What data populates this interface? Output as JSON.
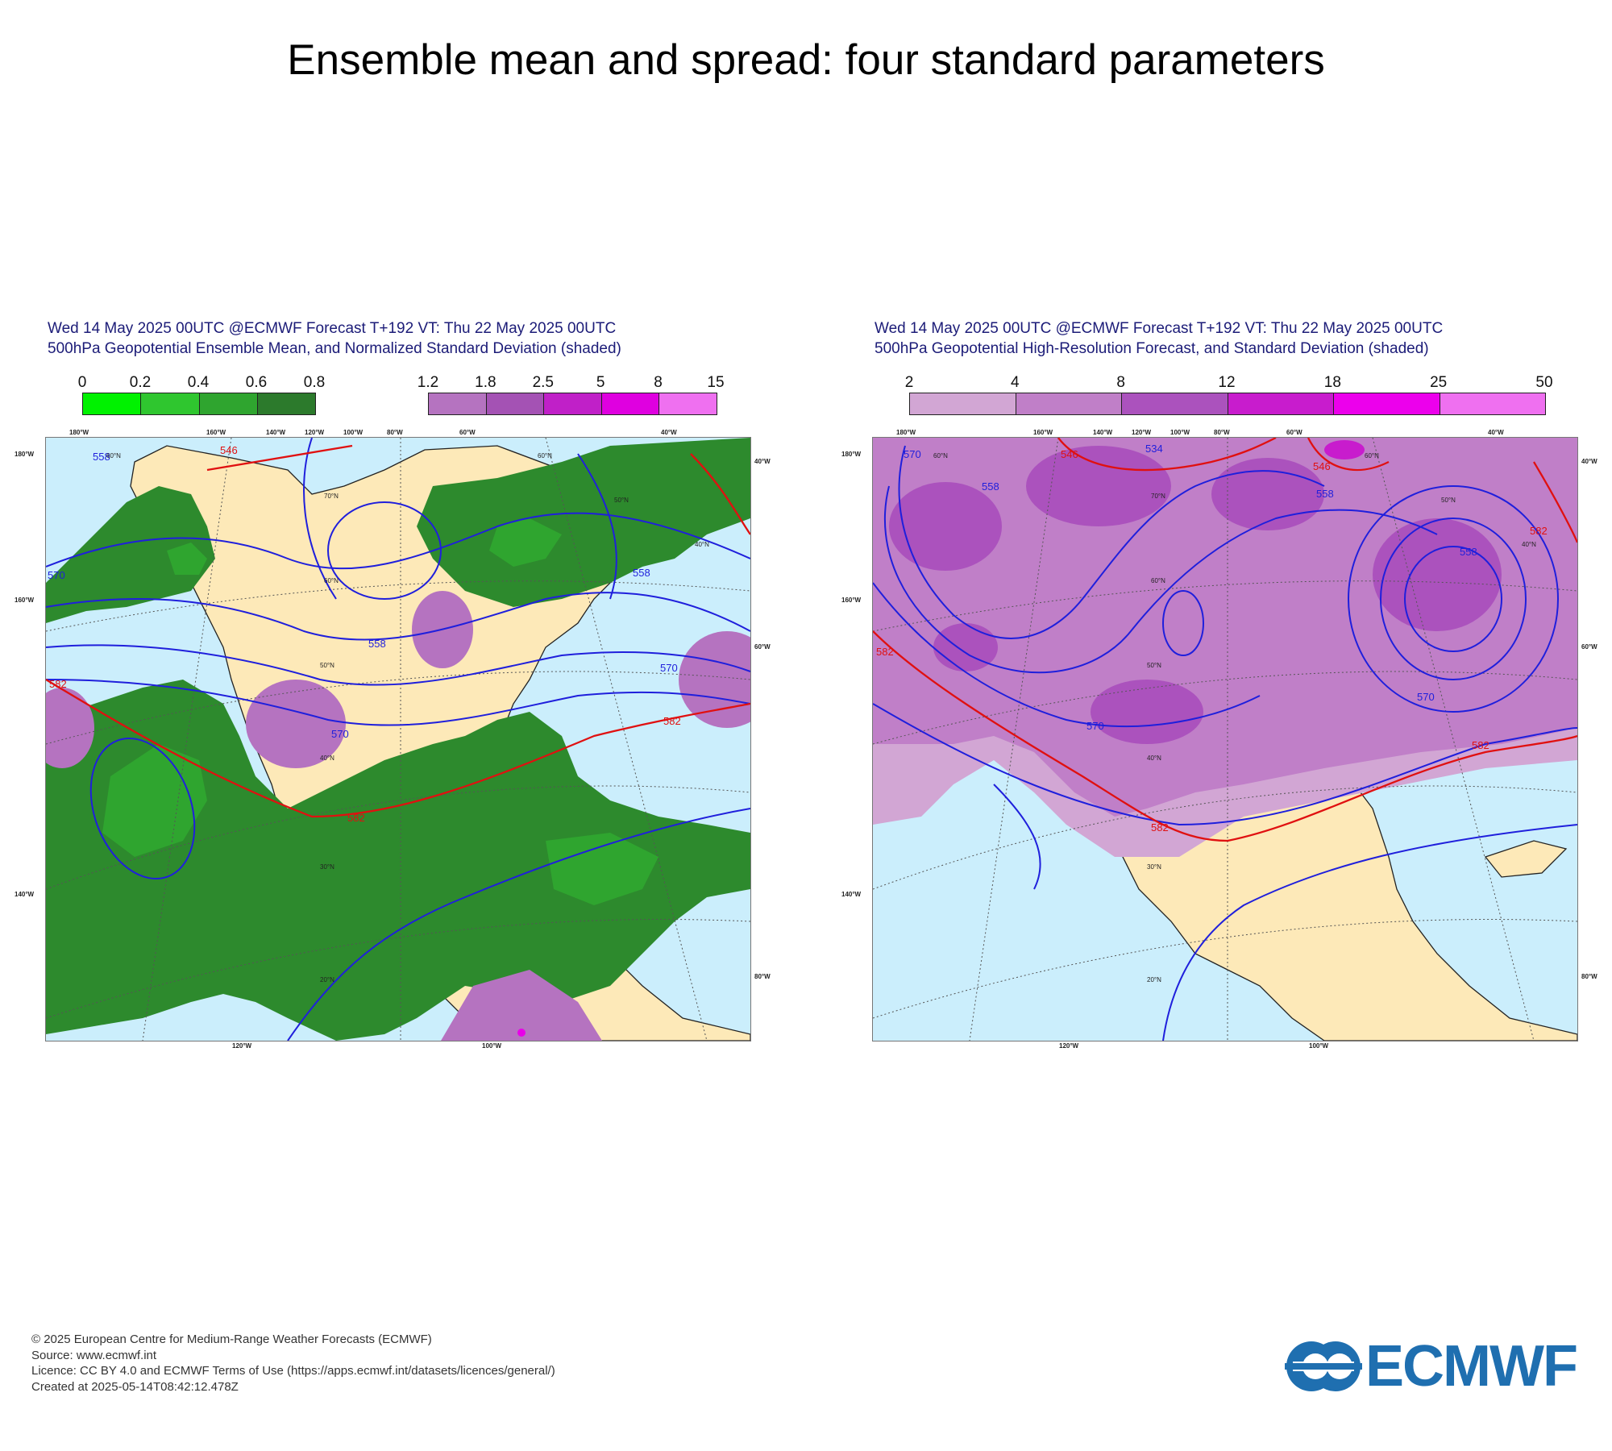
{
  "page": {
    "title": "Ensemble mean and spread: four standard parameters"
  },
  "colors": {
    "ocean": "#cbeefc",
    "land": "#fde9b8",
    "green": [
      "#00f200",
      "#2fc62f",
      "#2fa52f",
      "#2d8a2d",
      "#2c7a2c"
    ],
    "purple": [
      "#cda3d3",
      "#c081cc",
      "#b35cc5",
      "#cf12d6",
      "#e800e8",
      "#ef6ef2"
    ],
    "contour_blue": "#1f1fdc",
    "contour_red": "#e01010"
  },
  "panels": [
    {
      "id": "left",
      "header_line1": "Wed 14 May 2025 00UTC @ECMWF Forecast T+192 VT: Thu 22 May 2025 00UTC",
      "header_line2": "500hPa Geopotential Ensemble Mean, and Normalized Standard Deviation (shaded)",
      "colorbar_green": {
        "ticks": [
          "0",
          "0.2",
          "0.4",
          "0.6",
          "0.8"
        ],
        "colors": [
          "#00f200",
          "#2fc62f",
          "#2fa52f",
          "#2c7a2c"
        ]
      },
      "colorbar_purple": {
        "ticks": [
          "1.2",
          "1.8",
          "2.5",
          "5",
          "8",
          "15"
        ],
        "colors": [
          "#b573c0",
          "#a452b4",
          "#c020c8",
          "#df00e0",
          "#ef70f0"
        ]
      },
      "contour_labels": [
        "558",
        "558",
        "558",
        "570",
        "570",
        "570",
        "582",
        "582",
        "582",
        "546"
      ],
      "lon_top": [
        "160°W",
        "180°W",
        "160°W",
        "140°W",
        "120°W",
        "100°W",
        "80°W",
        "60°W",
        "40°W"
      ],
      "lon_bottom": [
        "120°W",
        "100°W"
      ],
      "lon_left": [
        "180°W",
        "160°W",
        "140°W"
      ],
      "lon_right": [
        "40°W",
        "60°W",
        "80°W"
      ],
      "lat_labels": [
        "60°N",
        "70°N",
        "60°N",
        "50°N",
        "40°N",
        "30°N",
        "20°N",
        "50°N",
        "40°N",
        "60°N"
      ]
    },
    {
      "id": "right",
      "header_line1": "Wed 14 May 2025 00UTC @ECMWF Forecast T+192 VT: Thu 22 May 2025 00UTC",
      "header_line2": "500hPa Geopotential High-Resolution Forecast, and Standard Deviation (shaded)",
      "colorbar": {
        "ticks": [
          "2",
          "4",
          "8",
          "12",
          "18",
          "25",
          "50"
        ],
        "colors": [
          "#d2a6d4",
          "#c07fc8",
          "#ab52bd",
          "#c81ccd",
          "#ec00ec",
          "#ef70f0"
        ]
      },
      "contour_labels": [
        "570",
        "558",
        "546",
        "534",
        "546",
        "558",
        "558",
        "582",
        "582",
        "570",
        "582",
        "570",
        "582"
      ],
      "lon_top": [
        "160°W",
        "180°W",
        "160°W",
        "140°W",
        "120°W",
        "100°W",
        "80°W",
        "60°W",
        "40°W"
      ],
      "lon_bottom": [
        "120°W",
        "100°W"
      ],
      "lon_left": [
        "180°W",
        "160°W",
        "140°W"
      ],
      "lon_right": [
        "40°W",
        "60°W",
        "80°W"
      ],
      "lat_labels": [
        "60°N",
        "70°N",
        "60°N",
        "50°N",
        "40°N",
        "30°N",
        "20°N",
        "50°N",
        "40°N",
        "60°N"
      ]
    }
  ],
  "footer": {
    "line1": "© 2025 European Centre for Medium-Range Weather Forecasts (ECMWF)",
    "line2": "Source: www.ecmwf.int",
    "line3": "Licence: CC BY 4.0 and ECMWF Terms of Use (https://apps.ecmwf.int/datasets/licences/general/)",
    "line4": "Created at 2025-05-14T08:42:12.478Z"
  },
  "logo": {
    "text": "ECMWF"
  }
}
